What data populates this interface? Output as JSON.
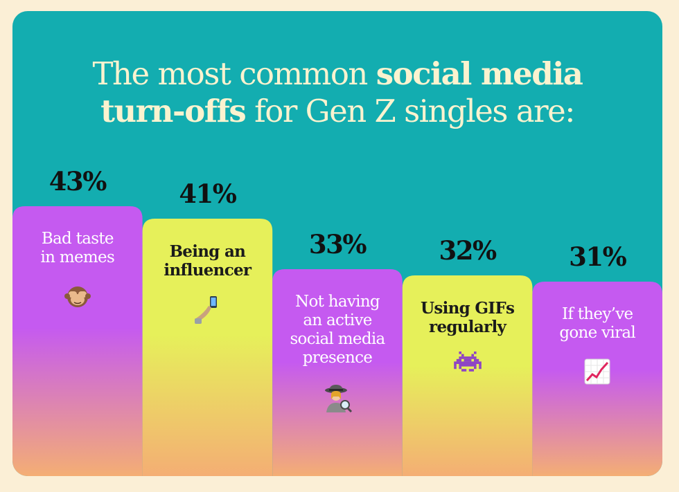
{
  "title": {
    "line1_regular": "The most common ",
    "line1_bold": "social media",
    "line2_bold": "turn-offs",
    "line2_regular": " for Gen Z singles are:"
  },
  "colors": {
    "background": "#13adb0",
    "page": "#fbefd6",
    "title": "#fbf3cf",
    "purple": "#c55af0",
    "yellow": "#e6f05a",
    "peach": "#f4ae74"
  },
  "chart_data": {
    "type": "bar",
    "categories": [
      "Bad taste in memes",
      "Being an influencer",
      "Not having an active social media presence",
      "Using GIFs regularly",
      "If they've gone viral"
    ],
    "values": [
      43,
      41,
      33,
      32,
      31
    ],
    "value_labels": [
      "43%",
      "41%",
      "33%",
      "32%",
      "31%"
    ],
    "label_lines": [
      [
        "Bad taste",
        "in memes"
      ],
      [
        "Being an",
        "influencer"
      ],
      [
        "Not having",
        "an active",
        "social media",
        "presence"
      ],
      [
        "Using GIFs",
        "regularly"
      ],
      [
        "If they’ve",
        "gone viral"
      ]
    ],
    "bar_colors": [
      "purple",
      "yellow",
      "purple",
      "yellow",
      "purple"
    ],
    "icons": [
      "see-no-evil-monkey-icon",
      "selfie-icon",
      "detective-icon",
      "alien-monster-icon",
      "chart-increasing-icon"
    ],
    "title": "The most common social media turn-offs for Gen Z singles are:",
    "xlabel": "",
    "ylabel": "",
    "unit": "%",
    "grid": false,
    "legend": "none"
  }
}
